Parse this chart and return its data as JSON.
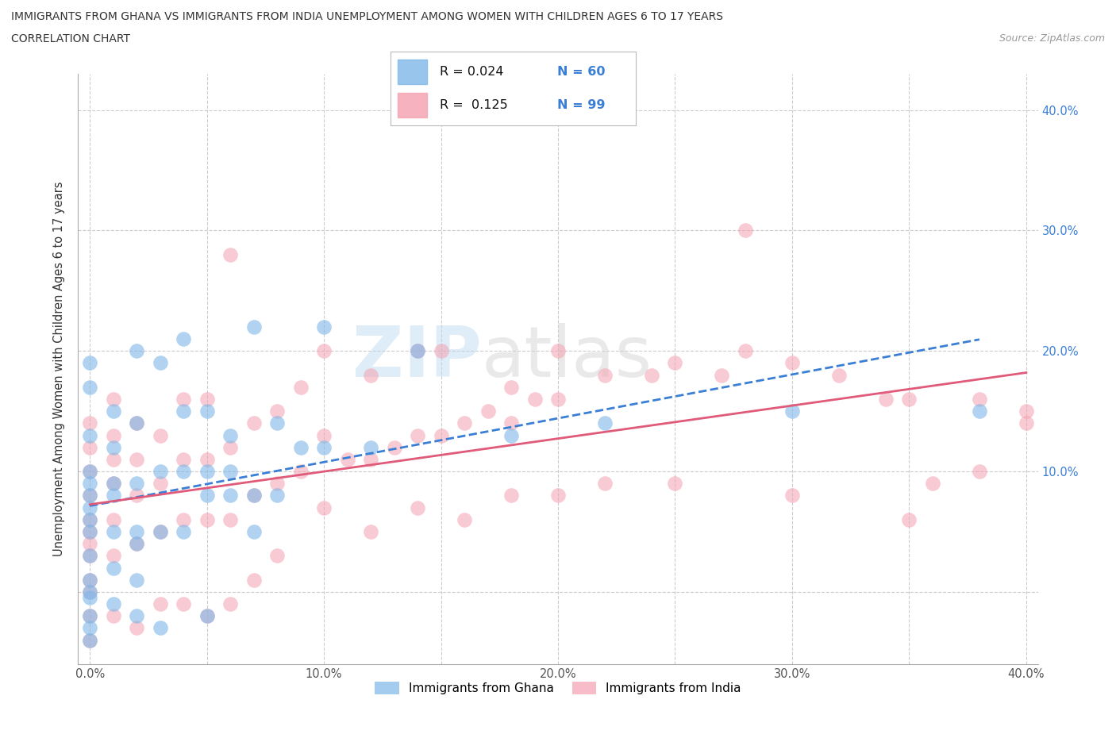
{
  "title_line1": "IMMIGRANTS FROM GHANA VS IMMIGRANTS FROM INDIA UNEMPLOYMENT AMONG WOMEN WITH CHILDREN AGES 6 TO 17 YEARS",
  "title_line2": "CORRELATION CHART",
  "source_text": "Source: ZipAtlas.com",
  "ylabel": "Unemployment Among Women with Children Ages 6 to 17 years",
  "watermark_zip": "ZIP",
  "watermark_atlas": "atlas",
  "ghana_color": "#7eb7e8",
  "india_color": "#f4a0b0",
  "ghana_line_color": "#3a7fd5",
  "india_line_color": "#e05a7a",
  "ghana_R": 0.024,
  "ghana_N": 60,
  "india_R": 0.125,
  "india_N": 99,
  "xtick_vals": [
    0.0,
    0.05,
    0.1,
    0.15,
    0.2,
    0.25,
    0.3,
    0.35,
    0.4
  ],
  "xtick_labels": [
    "0.0%",
    "",
    "10.0%",
    "",
    "20.0%",
    "",
    "30.0%",
    "",
    "40.0%"
  ],
  "ytick_vals": [
    0.0,
    0.1,
    0.2,
    0.3,
    0.4
  ],
  "ytick_labels": [
    "",
    "10.0%",
    "20.0%",
    "30.0%",
    "40.0%"
  ],
  "xlim": [
    -0.005,
    0.405
  ],
  "ylim": [
    -0.06,
    0.43
  ],
  "ghana_scatter_x": [
    0.0,
    0.0,
    0.0,
    0.0,
    0.0,
    0.0,
    0.0,
    0.0,
    0.0,
    0.0,
    0.0,
    0.01,
    0.01,
    0.01,
    0.01,
    0.01,
    0.02,
    0.02,
    0.02,
    0.02,
    0.03,
    0.03,
    0.04,
    0.04,
    0.05,
    0.05,
    0.06,
    0.07,
    0.08,
    0.1,
    0.12,
    0.14,
    0.18,
    0.22,
    0.3,
    0.38
  ],
  "ghana_scatter_y": [
    0.19,
    0.17,
    0.13,
    0.1,
    0.09,
    0.08,
    0.07,
    0.06,
    0.05,
    0.03,
    0.0,
    0.15,
    0.12,
    0.09,
    0.08,
    0.05,
    0.2,
    0.14,
    0.09,
    0.04,
    0.19,
    0.1,
    0.21,
    0.1,
    0.15,
    0.08,
    0.13,
    0.22,
    0.14,
    0.22,
    0.12,
    0.2,
    0.13,
    0.14,
    0.15,
    0.15
  ],
  "india_scatter_x": [
    0.0,
    0.0,
    0.0,
    0.0,
    0.0,
    0.0,
    0.0,
    0.0,
    0.0,
    0.0,
    0.01,
    0.01,
    0.01,
    0.01,
    0.01,
    0.01,
    0.02,
    0.02,
    0.02,
    0.02,
    0.03,
    0.03,
    0.03,
    0.04,
    0.04,
    0.04,
    0.05,
    0.05,
    0.05,
    0.06,
    0.06,
    0.06,
    0.07,
    0.07,
    0.08,
    0.08,
    0.09,
    0.09,
    0.1,
    0.1,
    0.11,
    0.12,
    0.12,
    0.13,
    0.14,
    0.14,
    0.15,
    0.15,
    0.16,
    0.17,
    0.18,
    0.18,
    0.19,
    0.2,
    0.2,
    0.22,
    0.24,
    0.25,
    0.27,
    0.28,
    0.3,
    0.32,
    0.34,
    0.35,
    0.36,
    0.38,
    0.38,
    0.4
  ],
  "india_scatter_y": [
    0.14,
    0.12,
    0.1,
    0.08,
    0.06,
    0.05,
    0.04,
    0.03,
    0.01,
    0.0,
    0.16,
    0.13,
    0.11,
    0.09,
    0.06,
    0.03,
    0.14,
    0.11,
    0.08,
    0.04,
    0.13,
    0.09,
    0.05,
    0.16,
    0.11,
    0.06,
    0.16,
    0.11,
    0.06,
    0.28,
    0.12,
    0.06,
    0.14,
    0.08,
    0.15,
    0.09,
    0.17,
    0.1,
    0.2,
    0.13,
    0.11,
    0.18,
    0.11,
    0.12,
    0.2,
    0.13,
    0.2,
    0.13,
    0.14,
    0.15,
    0.17,
    0.14,
    0.16,
    0.2,
    0.16,
    0.18,
    0.18,
    0.19,
    0.18,
    0.2,
    0.19,
    0.18,
    0.16,
    0.16,
    0.09,
    0.16,
    0.1,
    0.15
  ],
  "ghana_extra_x": [
    0.0,
    0.0,
    0.0,
    0.0,
    0.0,
    0.01,
    0.01,
    0.02,
    0.02,
    0.03,
    0.04,
    0.05,
    0.06,
    0.07,
    0.08,
    0.09,
    0.1,
    0.03,
    0.05,
    0.07,
    0.02,
    0.04,
    0.06
  ],
  "ghana_extra_y": [
    -0.02,
    -0.03,
    -0.04,
    -0.005,
    0.01,
    -0.01,
    0.02,
    -0.02,
    0.01,
    0.05,
    0.05,
    0.1,
    0.08,
    0.05,
    0.08,
    0.12,
    0.12,
    -0.03,
    -0.02,
    0.08,
    0.05,
    0.15,
    0.1
  ],
  "india_extra_x": [
    0.0,
    0.0,
    0.01,
    0.02,
    0.03,
    0.04,
    0.05,
    0.06,
    0.07,
    0.08,
    0.1,
    0.12,
    0.14,
    0.16,
    0.18,
    0.2,
    0.22,
    0.25,
    0.3,
    0.35,
    0.4,
    0.28
  ],
  "india_extra_y": [
    -0.02,
    -0.04,
    -0.02,
    -0.03,
    -0.01,
    -0.01,
    -0.02,
    -0.01,
    0.01,
    0.03,
    0.07,
    0.05,
    0.07,
    0.06,
    0.08,
    0.08,
    0.09,
    0.09,
    0.08,
    0.06,
    0.14,
    0.3
  ]
}
